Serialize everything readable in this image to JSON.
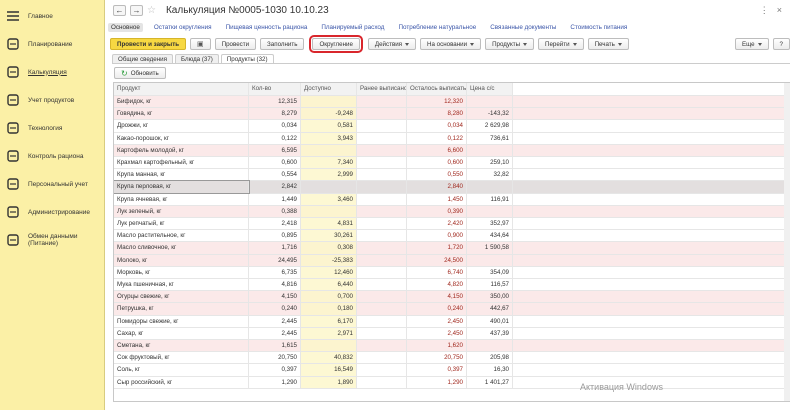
{
  "sidebar": {
    "items": [
      "Главное",
      "Планирование",
      "Калькуляция",
      "Учет продуктов",
      "Технология",
      "Контроль рациона",
      "Персональный учет",
      "Администрирование",
      "Обмен данными (Питание)"
    ],
    "active": 2
  },
  "header": {
    "title": "Калькуляция №0005-1030 10.10.23"
  },
  "nav_links": {
    "items": [
      "Основное",
      "Остатки округления",
      "Пищевая ценность рациона",
      "Планируемый расход",
      "Потребление натуральное",
      "Связанные документы",
      "Стоимость питания"
    ],
    "active": 0
  },
  "toolbar": {
    "buttons": [
      {
        "label": "Провести и закрыть",
        "dropdown": false
      },
      {
        "label": "Провести",
        "dropdown": false
      },
      {
        "label": "Заполнить",
        "dropdown": false
      },
      {
        "label": "Округление",
        "dropdown": false
      },
      {
        "label": "Действия",
        "dropdown": true
      },
      {
        "label": "На основании",
        "dropdown": true
      },
      {
        "label": "Продукты",
        "dropdown": true
      },
      {
        "label": "Перейти",
        "dropdown": true
      },
      {
        "label": "Печать",
        "dropdown": true
      }
    ],
    "primary": 0,
    "outlined": 3,
    "more": "Еще",
    "help": "?"
  },
  "tabs": {
    "items": [
      "Общие сведения",
      "Блюда (37)",
      "Продукты (32)"
    ],
    "active": 2
  },
  "refresh_button": "Обновить",
  "table": {
    "columns": [
      "Продукт",
      "Кол-во",
      "Доступно",
      "Ранее выписано",
      "Осталось выписать",
      "Цена с/с"
    ],
    "rows": [
      [
        "Бифидок, кг",
        "12,315",
        null,
        null,
        "12,320",
        null
      ],
      [
        "Говядина, кг",
        "8,279",
        "-9,248",
        null,
        "8,280",
        "-143,32"
      ],
      [
        "Дрожжи, кг",
        "0,034",
        "0,581",
        null,
        "0,034",
        "2 629,98"
      ],
      [
        "Какао-порошок, кг",
        "0,122",
        "3,943",
        null,
        "0,122",
        "736,61"
      ],
      [
        "Картофель молодой, кг",
        "6,595",
        null,
        null,
        "6,600",
        null
      ],
      [
        "Крахмал картофельный, кг",
        "0,600",
        "7,340",
        null,
        "0,600",
        "259,10"
      ],
      [
        "Крупа манная, кг",
        "0,554",
        "2,999",
        null,
        "0,550",
        "32,82"
      ],
      [
        "Крупа перловая, кг",
        "2,842",
        null,
        null,
        "2,840",
        null
      ],
      [
        "Крупа ячневая, кг",
        "1,449",
        "3,460",
        null,
        "1,450",
        "116,91"
      ],
      [
        "Лук зеленый, кг",
        "0,388",
        null,
        null,
        "0,390",
        null
      ],
      [
        "Лук репчатый, кг",
        "2,418",
        "4,831",
        null,
        "2,420",
        "352,97"
      ],
      [
        "Масло растительное, кг",
        "0,895",
        "30,261",
        null,
        "0,900",
        "434,64"
      ],
      [
        "Масло сливочное, кг",
        "1,716",
        "0,308",
        null,
        "1,720",
        "1 590,58"
      ],
      [
        "Молоко, кг",
        "24,495",
        "-25,383",
        null,
        "24,500",
        null
      ],
      [
        "Морковь, кг",
        "6,735",
        "12,460",
        null,
        "6,740",
        "354,09"
      ],
      [
        "Мука пшеничная, кг",
        "4,816",
        "6,440",
        null,
        "4,820",
        "116,57"
      ],
      [
        "Огурцы свежие, кг",
        "4,150",
        "0,700",
        null,
        "4,150",
        "350,00"
      ],
      [
        "Петрушка, кг",
        "0,240",
        "0,180",
        null,
        "0,240",
        "442,67"
      ],
      [
        "Помидоры свежие, кг",
        "2,445",
        "6,170",
        null,
        "2,450",
        "490,01"
      ],
      [
        "Сахар, кг",
        "2,445",
        "2,971",
        null,
        "2,450",
        "437,39"
      ],
      [
        "Сметана, кг",
        "1,615",
        null,
        null,
        "1,620",
        null
      ],
      [
        "Сок фруктовый, кг",
        "20,750",
        "40,832",
        null,
        "20,750",
        "205,98"
      ],
      [
        "Соль, кг",
        "0,397",
        "16,549",
        null,
        "0,397",
        "16,30"
      ],
      [
        "Сыр российский, кг",
        "1,290",
        "1,890",
        null,
        "1,290",
        "1 401,27"
      ]
    ],
    "highlighted_rows": [
      0,
      1,
      4,
      9,
      12,
      13,
      16,
      17,
      20
    ],
    "selected_row": 7
  },
  "watermark": "Активация Windows"
}
